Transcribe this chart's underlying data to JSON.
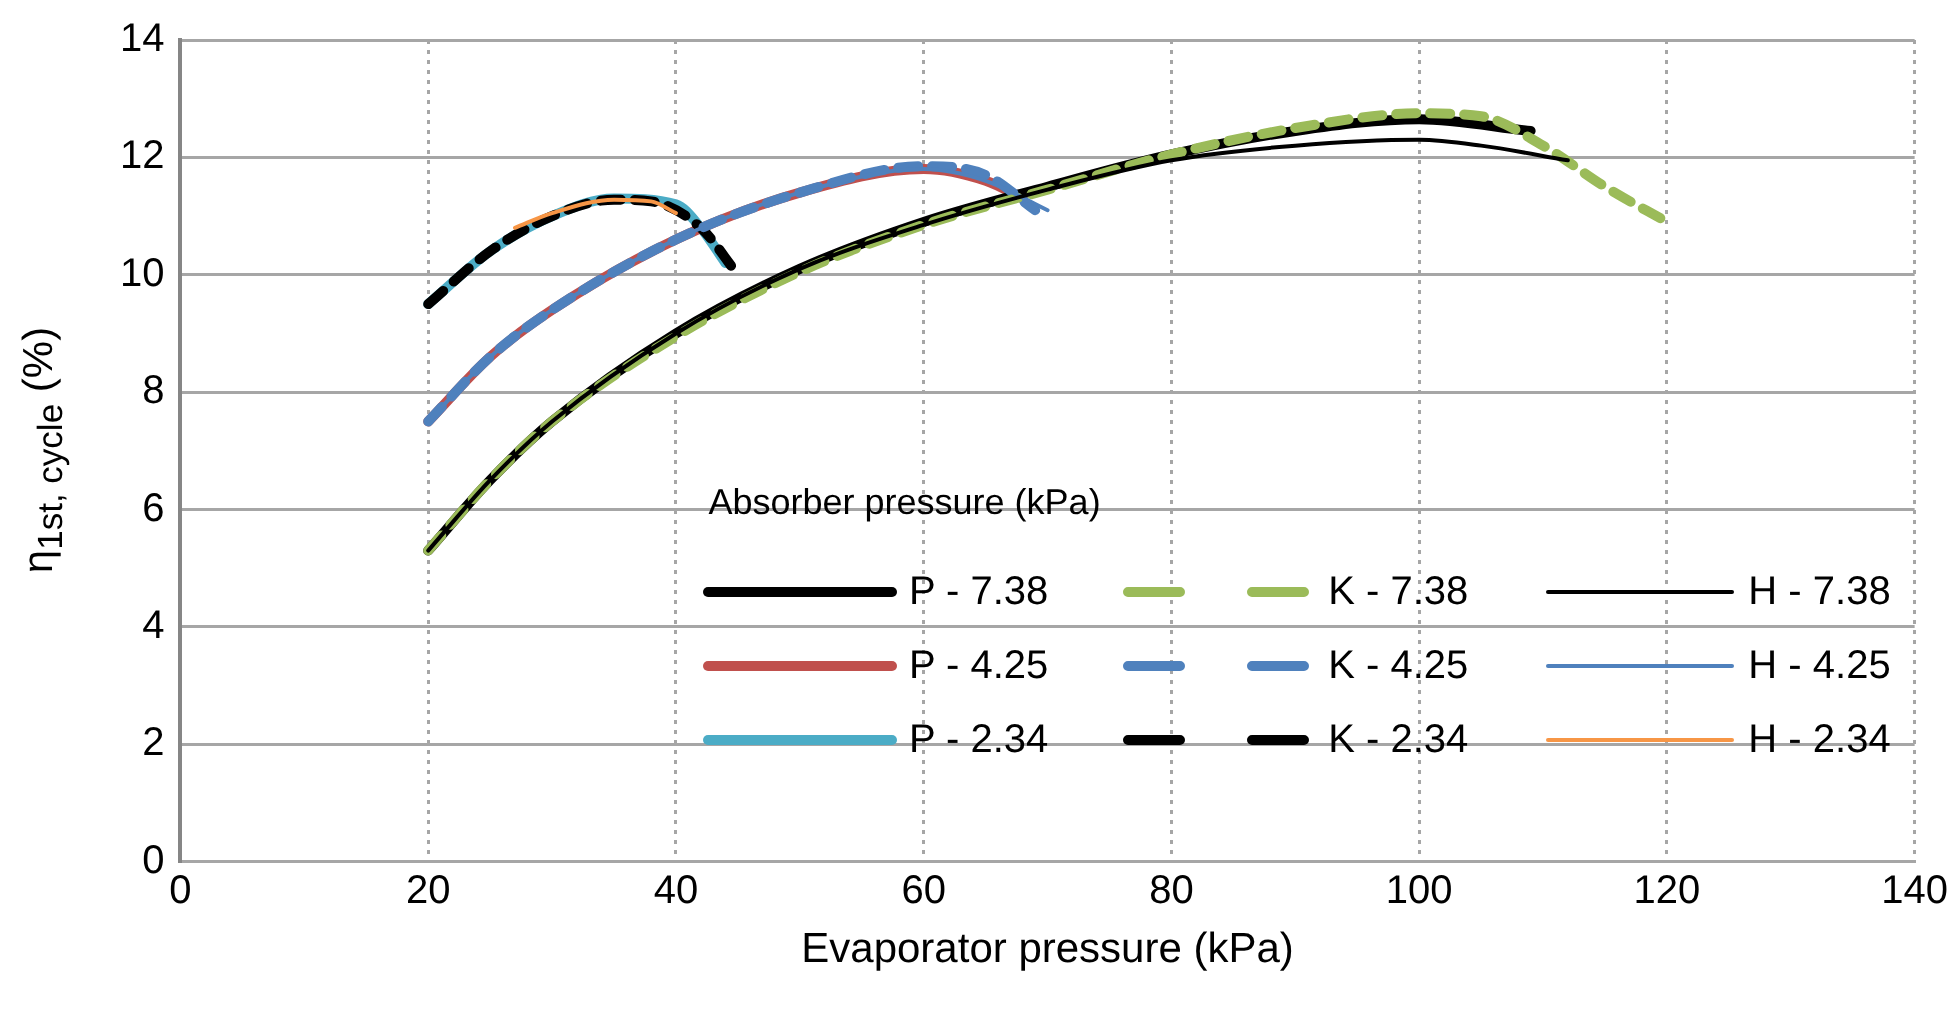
{
  "chart_data": {
    "type": "line",
    "xlabel": "Evaporator pressure (kPa)",
    "ylabel": "η$_{1st, cycle}$  (%)",
    "legend_title": "Absorber pressure (kPa)",
    "legend": "bottom right",
    "grid": true,
    "marker": "none",
    "xlim": [
      0,
      140
    ],
    "xticks": [
      0,
      20,
      40,
      60,
      80,
      100,
      120,
      140
    ],
    "ylim": [
      0,
      14
    ],
    "yticks": [
      0,
      2,
      4,
      6,
      8,
      10,
      12,
      14
    ],
    "series": [
      {
        "name": "P - 7.38",
        "color": "#000000",
        "line_style": "solid",
        "x": [
          20,
          25,
          30,
          40,
          50,
          60,
          70,
          80,
          90,
          100,
          109
        ],
        "values": [
          5.3,
          6.5,
          7.5,
          9.0,
          10.1,
          10.9,
          11.5,
          12.05,
          12.45,
          12.65,
          12.45
        ]
      },
      {
        "name": "K - 7.38",
        "color": "#9bbb59",
        "line_style": "dashed",
        "x": [
          20,
          25,
          30,
          40,
          50,
          60,
          70,
          80,
          90,
          100,
          105,
          110,
          115,
          120
        ],
        "values": [
          5.3,
          6.5,
          7.5,
          8.95,
          10.05,
          10.85,
          11.45,
          12.05,
          12.5,
          12.75,
          12.7,
          12.2,
          11.5,
          10.9
        ]
      },
      {
        "name": "H - 7.38",
        "color": "#000000",
        "line_style": "solid",
        "x": [
          20,
          25,
          30,
          40,
          50,
          60,
          70,
          80,
          90,
          100,
          105,
          112
        ],
        "values": [
          5.3,
          6.5,
          7.5,
          9.0,
          10.1,
          10.85,
          11.45,
          11.95,
          12.2,
          12.3,
          12.2,
          11.95
        ]
      },
      {
        "name": "P - 4.25",
        "color": "#c0504d",
        "line_style": "solid",
        "x": [
          20,
          25,
          30,
          40,
          50,
          60,
          65,
          68
        ],
        "values": [
          7.5,
          8.6,
          9.4,
          10.6,
          11.4,
          11.8,
          11.6,
          11.3
        ]
      },
      {
        "name": "K - 4.25",
        "color": "#4f81bd",
        "line_style": "dashed",
        "x": [
          20,
          25,
          30,
          40,
          50,
          60,
          65,
          69
        ],
        "values": [
          7.5,
          8.6,
          9.4,
          10.6,
          11.4,
          11.85,
          11.7,
          11.1
        ]
      },
      {
        "name": "H - 4.25",
        "color": "#4f81bd",
        "line_style": "solid",
        "x": [
          20,
          25,
          30,
          40,
          50,
          60,
          65,
          70
        ],
        "values": [
          7.5,
          8.6,
          9.4,
          10.6,
          11.4,
          11.8,
          11.6,
          11.1
        ]
      },
      {
        "name": "P - 2.34",
        "color": "#4bacc6",
        "line_style": "solid",
        "x": [
          20,
          25,
          30,
          35,
          40,
          42,
          44
        ],
        "values": [
          9.5,
          10.4,
          11.0,
          11.3,
          11.2,
          10.8,
          10.2
        ]
      },
      {
        "name": "K - 2.34",
        "color": "#000000",
        "line_style": "dashed",
        "x": [
          20,
          25,
          30,
          35,
          38,
          42,
          45
        ],
        "values": [
          9.5,
          10.4,
          11.0,
          11.28,
          11.25,
          10.8,
          10.0
        ]
      },
      {
        "name": "H - 2.34",
        "color": "#f79646",
        "line_style": "solid",
        "x": [
          27,
          30,
          35,
          38,
          40
        ],
        "values": [
          10.8,
          11.05,
          11.28,
          11.25,
          11.05
        ]
      }
    ]
  }
}
